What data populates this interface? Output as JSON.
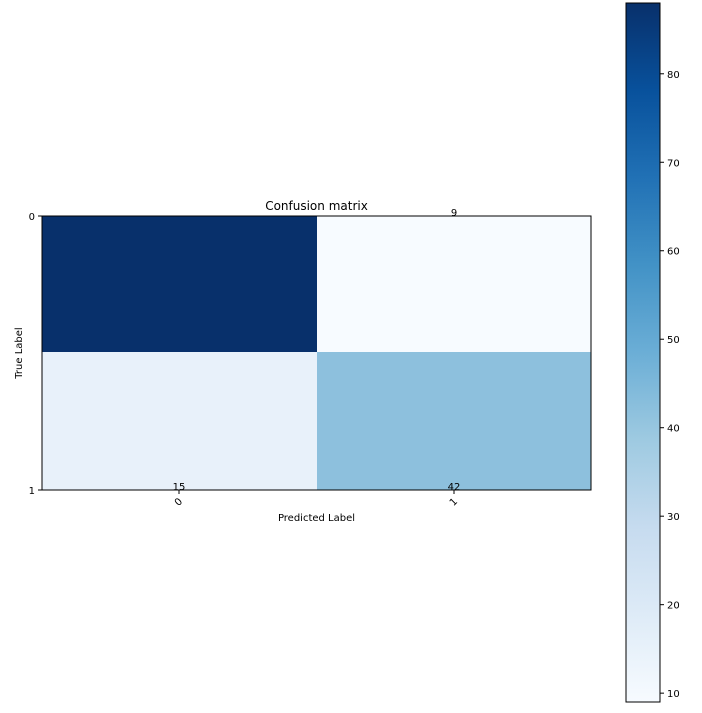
{
  "chart_data": {
    "type": "heatmap",
    "title": "Confusion matrix",
    "xlabel": "Predicted Label",
    "ylabel": "True Label",
    "x_categories": [
      "0",
      "1"
    ],
    "y_categories": [
      "0",
      "1"
    ],
    "values": [
      [
        88,
        9
      ],
      [
        15,
        42
      ]
    ],
    "cell_labels": [
      [
        "",
        "9"
      ],
      [
        "15",
        "42"
      ]
    ],
    "colormap": "Blues",
    "colorbar": {
      "range": [
        9,
        88
      ],
      "ticks": [
        10,
        20,
        30,
        40,
        50,
        60,
        70,
        80
      ],
      "labels": [
        "10",
        "20",
        "30",
        "40",
        "50",
        "60",
        "70",
        "80"
      ]
    },
    "x_tick_rotation_deg": 45,
    "colors": {
      "low": "#f7fbff",
      "high": "#08306b",
      "axis": "#000000"
    }
  }
}
